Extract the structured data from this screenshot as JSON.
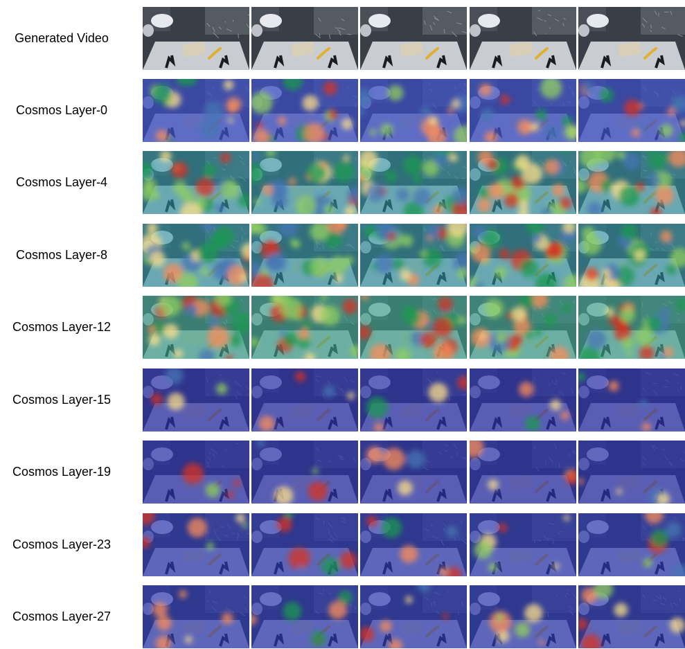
{
  "figure": {
    "rows": [
      {
        "label": "Generated Video",
        "kind": "video"
      },
      {
        "label": "Cosmos Layer-0",
        "kind": "heat-broad"
      },
      {
        "label": "Cosmos Layer-4",
        "kind": "heat-mid"
      },
      {
        "label": "Cosmos Layer-8",
        "kind": "heat-mid"
      },
      {
        "label": "Cosmos Layer-12",
        "kind": "heat-warm"
      },
      {
        "label": "Cosmos Layer-15",
        "kind": "heat-focus"
      },
      {
        "label": "Cosmos Layer-19",
        "kind": "heat-focus"
      },
      {
        "label": "Cosmos Layer-23",
        "kind": "heat-sparse"
      },
      {
        "label": "Cosmos Layer-27",
        "kind": "heat-sparse"
      }
    ],
    "frames_per_row": 5
  }
}
